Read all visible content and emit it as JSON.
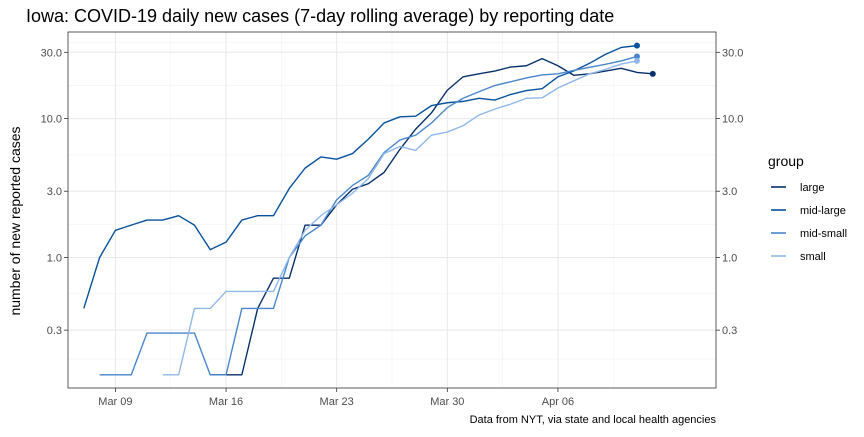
{
  "chart_data": {
    "type": "line",
    "title": "Iowa: COVID-19 daily new cases (7-day rolling average) by reporting date",
    "ylabel": "number of new reported cases",
    "caption": "Data from NYT, via state and local health agencies",
    "y_scale": "log",
    "ylim": [
      0.115,
      42
    ],
    "y_ticks": [
      0.3,
      1.0,
      3.0,
      10.0,
      30.0
    ],
    "y_tick_labels": [
      "0.3",
      "1.0",
      "3.0",
      "10.0",
      "30.0"
    ],
    "x_range": [
      "2020-03-06",
      "2020-04-16"
    ],
    "x_ticks": [
      "2020-03-09",
      "2020-03-16",
      "2020-03-23",
      "2020-03-30",
      "2020-04-06"
    ],
    "x_tick_labels": [
      "Mar 09",
      "Mar 16",
      "Mar 23",
      "Mar 30",
      "Apr 06"
    ],
    "grid": true,
    "legend": {
      "title": "group",
      "position": "right"
    },
    "series": [
      {
        "name": "large",
        "color": "#08306b",
        "end_point": true,
        "points": [
          [
            "2020-03-15",
            0.143
          ],
          [
            "2020-03-16",
            0.143
          ],
          [
            "2020-03-17",
            0.143
          ],
          [
            "2020-03-18",
            0.43
          ],
          [
            "2020-03-19",
            0.71
          ],
          [
            "2020-03-20",
            0.71
          ],
          [
            "2020-03-21",
            1.71
          ],
          [
            "2020-03-22",
            1.71
          ],
          [
            "2020-03-23",
            2.4
          ],
          [
            "2020-03-24",
            3.1
          ],
          [
            "2020-03-25",
            3.4
          ],
          [
            "2020-03-26",
            4.1
          ],
          [
            "2020-03-27",
            6.0
          ],
          [
            "2020-03-28",
            8.4
          ],
          [
            "2020-03-29",
            11.0
          ],
          [
            "2020-03-30",
            16.0
          ],
          [
            "2020-03-31",
            20.0
          ],
          [
            "2020-04-01",
            21.0
          ],
          [
            "2020-04-02",
            22.0
          ],
          [
            "2020-04-03",
            23.5
          ],
          [
            "2020-04-04",
            24.0
          ],
          [
            "2020-04-05",
            27.0
          ],
          [
            "2020-04-06",
            24.0
          ],
          [
            "2020-04-07",
            20.5
          ],
          [
            "2020-04-08",
            21.0
          ],
          [
            "2020-04-09",
            22.0
          ],
          [
            "2020-04-10",
            23.0
          ],
          [
            "2020-04-11",
            21.5
          ],
          [
            "2020-04-12",
            21.0
          ]
        ]
      },
      {
        "name": "mid-large",
        "color": "#08519c",
        "end_point": true,
        "points": [
          [
            "2020-03-07",
            0.43
          ],
          [
            "2020-03-08",
            1.0
          ],
          [
            "2020-03-09",
            1.57
          ],
          [
            "2020-03-10",
            1.71
          ],
          [
            "2020-03-11",
            1.86
          ],
          [
            "2020-03-12",
            1.86
          ],
          [
            "2020-03-13",
            2.0
          ],
          [
            "2020-03-14",
            1.71
          ],
          [
            "2020-03-15",
            1.14
          ],
          [
            "2020-03-16",
            1.29
          ],
          [
            "2020-03-17",
            1.86
          ],
          [
            "2020-03-18",
            2.0
          ],
          [
            "2020-03-19",
            2.0
          ],
          [
            "2020-03-20",
            3.14
          ],
          [
            "2020-03-21",
            4.4
          ],
          [
            "2020-03-22",
            5.3
          ],
          [
            "2020-03-23",
            5.1
          ],
          [
            "2020-03-24",
            5.6
          ],
          [
            "2020-03-25",
            7.1
          ],
          [
            "2020-03-26",
            9.3
          ],
          [
            "2020-03-27",
            10.3
          ],
          [
            "2020-03-28",
            10.4
          ],
          [
            "2020-03-29",
            12.4
          ],
          [
            "2020-03-30",
            13.0
          ],
          [
            "2020-03-31",
            13.3
          ],
          [
            "2020-04-01",
            14.0
          ],
          [
            "2020-04-02",
            13.6
          ],
          [
            "2020-04-03",
            14.9
          ],
          [
            "2020-04-04",
            15.9
          ],
          [
            "2020-04-05",
            16.4
          ],
          [
            "2020-04-06",
            20.0
          ],
          [
            "2020-04-07",
            22.0
          ],
          [
            "2020-04-08",
            25.0
          ],
          [
            "2020-04-09",
            29.0
          ],
          [
            "2020-04-10",
            32.5
          ],
          [
            "2020-04-11",
            33.5
          ]
        ]
      },
      {
        "name": "mid-small",
        "color": "#4a86cc",
        "end_point": true,
        "points": [
          [
            "2020-03-08",
            0.143
          ],
          [
            "2020-03-09",
            0.143
          ],
          [
            "2020-03-10",
            0.143
          ],
          [
            "2020-03-11",
            0.286
          ],
          [
            "2020-03-12",
            0.286
          ],
          [
            "2020-03-13",
            0.286
          ],
          [
            "2020-03-14",
            0.286
          ],
          [
            "2020-03-15",
            0.143
          ],
          [
            "2020-03-16",
            0.143
          ],
          [
            "2020-03-17",
            0.43
          ],
          [
            "2020-03-18",
            0.43
          ],
          [
            "2020-03-19",
            0.43
          ],
          [
            "2020-03-20",
            1.0
          ],
          [
            "2020-03-21",
            1.43
          ],
          [
            "2020-03-22",
            1.71
          ],
          [
            "2020-03-23",
            2.6
          ],
          [
            "2020-03-24",
            3.3
          ],
          [
            "2020-03-25",
            3.9
          ],
          [
            "2020-03-26",
            5.7
          ],
          [
            "2020-03-27",
            7.0
          ],
          [
            "2020-03-28",
            7.6
          ],
          [
            "2020-03-29",
            9.3
          ],
          [
            "2020-03-30",
            12.0
          ],
          [
            "2020-03-31",
            14.0
          ],
          [
            "2020-04-01",
            15.6
          ],
          [
            "2020-04-02",
            17.3
          ],
          [
            "2020-04-03",
            18.4
          ],
          [
            "2020-04-04",
            19.6
          ],
          [
            "2020-04-05",
            20.6
          ],
          [
            "2020-04-06",
            21.0
          ],
          [
            "2020-04-07",
            22.2
          ],
          [
            "2020-04-08",
            23.4
          ],
          [
            "2020-04-09",
            24.6
          ],
          [
            "2020-04-10",
            26.0
          ],
          [
            "2020-04-11",
            28.0
          ]
        ]
      },
      {
        "name": "small",
        "color": "#90b8e8",
        "end_point": true,
        "points": [
          [
            "2020-03-12",
            0.143
          ],
          [
            "2020-03-13",
            0.143
          ],
          [
            "2020-03-14",
            0.43
          ],
          [
            "2020-03-15",
            0.43
          ],
          [
            "2020-03-16",
            0.57
          ],
          [
            "2020-03-17",
            0.57
          ],
          [
            "2020-03-18",
            0.57
          ],
          [
            "2020-03-19",
            0.57
          ],
          [
            "2020-03-20",
            1.0
          ],
          [
            "2020-03-21",
            1.57
          ],
          [
            "2020-03-22",
            2.0
          ],
          [
            "2020-03-23",
            2.4
          ],
          [
            "2020-03-24",
            2.9
          ],
          [
            "2020-03-25",
            3.7
          ],
          [
            "2020-03-26",
            5.6
          ],
          [
            "2020-03-27",
            6.3
          ],
          [
            "2020-03-28",
            5.9
          ],
          [
            "2020-03-29",
            7.6
          ],
          [
            "2020-03-30",
            8.0
          ],
          [
            "2020-03-31",
            8.9
          ],
          [
            "2020-04-01",
            10.6
          ],
          [
            "2020-04-02",
            11.7
          ],
          [
            "2020-04-03",
            12.7
          ],
          [
            "2020-04-04",
            14.0
          ],
          [
            "2020-04-05",
            14.1
          ],
          [
            "2020-04-06",
            16.6
          ],
          [
            "2020-04-07",
            18.7
          ],
          [
            "2020-04-08",
            21.0
          ],
          [
            "2020-04-09",
            22.6
          ],
          [
            "2020-04-10",
            24.7
          ],
          [
            "2020-04-11",
            26.0
          ]
        ]
      }
    ]
  }
}
